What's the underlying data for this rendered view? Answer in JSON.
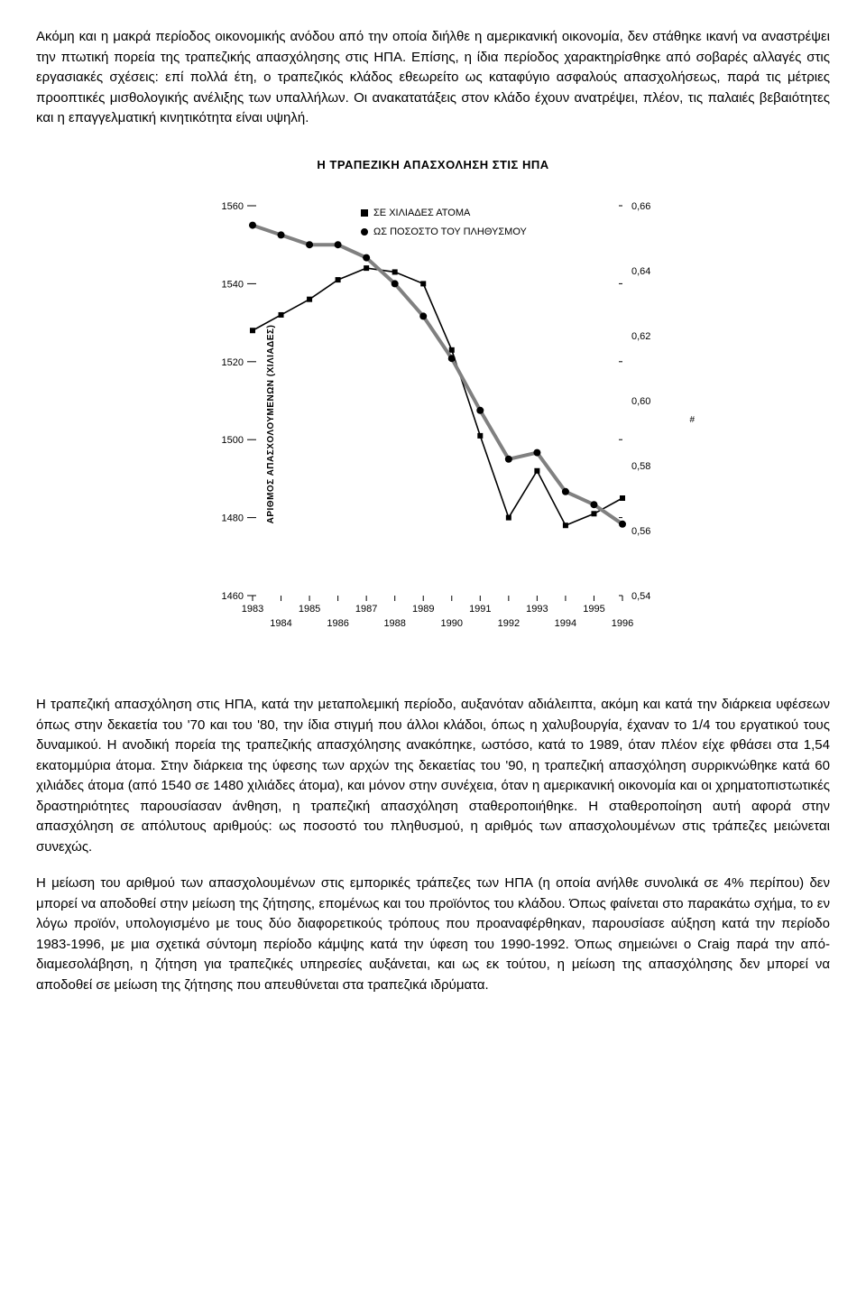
{
  "paragraphs": {
    "p1": "Ακόμη και η μακρά περίοδος οικονομικής ανόδου από την οποία διήλθε η αμερικανική οικονομία, δεν στάθηκε ικανή να αναστρέψει την πτωτική πορεία της τραπεζικής απασχόλησης στις ΗΠΑ. Επίσης, η ίδια περίοδος χαρακτηρίσθηκε από σοβαρές αλλαγές στις εργασιακές σχέσεις: επί πολλά έτη, ο τραπεζικός κλάδος εθεωρείτο ως καταφύγιο ασφαλούς απασχολήσεως, παρά τις μέτριες προοπτικές μισθολογικής ανέλιξης των υπαλλήλων. Οι ανακατατάξεις στον κλάδο έχουν ανατρέψει, πλέον, τις παλαιές βεβαιότητες και η επαγγελματική κινητικότητα είναι υψηλή.",
    "p2": "Η τραπεζική απασχόληση στις ΗΠΑ, κατά την μεταπολεμική περίοδο, αυξανόταν αδιάλειπτα, ακόμη και κατά την διάρκεια υφέσεων όπως στην δεκαετία του '70 και του '80, την ίδια στιγμή που άλλοι κλάδοι, όπως η χαλυβουργία, έχαναν το 1/4 του εργατικού τους δυναμικού. Η ανοδική πορεία της τραπεζικής απασχόλησης ανακόπηκε, ωστόσο, κατά το 1989, όταν πλέον είχε φθάσει στα 1,54 εκατομμύρια άτομα. Στην διάρκεια της ύφεσης των αρχών της δεκαετίας του '90, η τραπεζική απασχόληση συρρικνώθηκε κατά 60 χιλιάδες άτομα (από 1540 σε 1480 χιλιάδες άτομα), και μόνον στην συνέχεια, όταν η αμερικανική οικονομία και οι χρηματοπιστωτικές δραστηριότητες παρουσίασαν άνθηση, η τραπεζική απασχόληση σταθεροποιήθηκε. Η σταθεροποίηση αυτή αφορά στην απασχόληση σε απόλυτους αριθμούς: ως ποσοστό του πληθυσμού, η αριθμός των απασχολουμένων στις τράπεζες μειώνεται συνεχώς.",
    "p3": "Η μείωση του αριθμού των απασχολουμένων στις εμπορικές τράπεζες των ΗΠΑ (η οποία ανήλθε συνολικά σε 4% περίπου) δεν μπορεί να αποδοθεί στην μείωση της ζήτησης, επομένως και του προϊόντος του κλάδου. Όπως φαίνεται στο παρακάτω σχήμα, το εν λόγω προϊόν, υπολογισμένο με τους δύο διαφορετικούς τρόπους που προαναφέρθηκαν, παρουσίασε αύξηση κατά την περίοδο 1983-1996, με μια σχετικά σύντομη περίοδο κάμψης κατά την ύφεση του 1990-1992. Όπως σημειώνει ο Craig παρά την από-διαμεσολάβηση, η ζήτηση για τραπεζικές υπηρεσίες αυξάνεται, και ως εκ τούτου, η μείωση της απασχόλησης δεν μπορεί να αποδοθεί σε μείωση της ζήτησης που απευθύνεται στα τραπεζικά ιδρύματα."
  },
  "chart": {
    "title": "Η ΤΡΑΠΕΖΙΚΗ ΑΠΑΣΧΟΛΗΣΗ ΣΤΙΣ ΗΠΑ",
    "type": "line",
    "ylabel_left": "ΑΡΙΘΜΟΣ ΑΠΑΣΧΟΛΟΥΜΕΝΩΝ (ΧΙΛΙΑΔΕΣ)",
    "legend": {
      "series1": "ΣΕ ΧΙΛΙΑΔΕΣ ΑΤΟΜΑ",
      "series2": "ΩΣ ΠΟΣΟΣΤΟ ΤΟΥ ΠΛΗΘΥΣΜΟΥ"
    },
    "years": [
      1983,
      1984,
      1985,
      1986,
      1987,
      1988,
      1989,
      1990,
      1991,
      1992,
      1993,
      1994,
      1995,
      1996
    ],
    "series_thousands": {
      "values": [
        1528,
        1532,
        1536,
        1541,
        1544,
        1543,
        1540,
        1523,
        1501,
        1480,
        1492,
        1478,
        1481,
        1485
      ],
      "color": "#000000",
      "marker": "square",
      "line_width": 1.6
    },
    "series_pct": {
      "values": [
        0.654,
        0.651,
        0.648,
        0.648,
        0.644,
        0.636,
        0.626,
        0.613,
        0.597,
        0.582,
        0.584,
        0.572,
        0.568,
        0.562
      ],
      "color": "#808080",
      "marker": "circle",
      "line_width": 4
    },
    "y_left": {
      "min": 1460,
      "max": 1560,
      "ticks": [
        1460,
        1480,
        1500,
        1520,
        1540,
        1560
      ]
    },
    "y_right": {
      "min": 0.54,
      "max": 0.66,
      "ticks": [
        0.54,
        0.56,
        0.58,
        0.6,
        0.62,
        0.64,
        0.66
      ],
      "labels": [
        "0,54",
        "0,56",
        "0,58",
        "0,60",
        "0,62",
        "0,64",
        "0,66"
      ]
    },
    "xlabels_top": [
      "1983",
      "1985",
      "1987",
      "1989",
      "1991",
      "1993",
      "1995"
    ],
    "xlabels_bot": [
      "1984",
      "1986",
      "1988",
      "1990",
      "1992",
      "1994",
      "1996"
    ],
    "side_mark": "#",
    "background_color": "#ffffff",
    "tick_fontsize": 11,
    "label_fontsize": 10
  }
}
